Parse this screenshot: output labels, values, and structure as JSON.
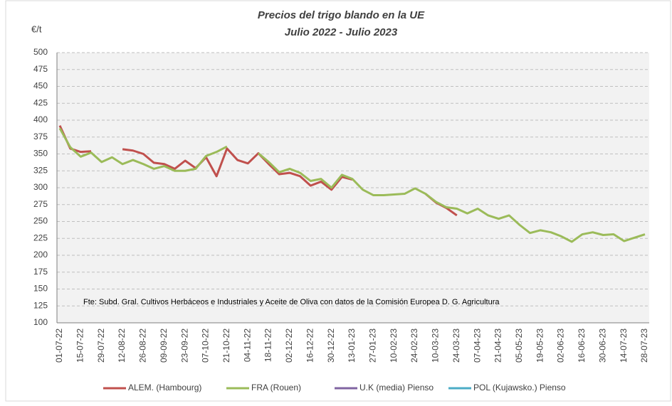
{
  "chart_data": {
    "type": "line",
    "title": "Precios del trigo blando en la UE",
    "subtitle": "Julio 2022 - Julio 2023",
    "y_label": "€/t",
    "note": "Fte: Subd. Gral. Cultivos Herbáceos e Industriales y Aceite de Oliva con  datos de la Comisión Europea D.  G. Agricultura",
    "categories": [
      "01-07-22",
      null,
      "15-07-22",
      null,
      "29-07-22",
      null,
      "12-08-22",
      null,
      "26-08-22",
      null,
      "09-09-22",
      null,
      "23-09-22",
      null,
      "07-10-22",
      null,
      "21-10-22",
      null,
      "04-11-22",
      null,
      "18-11-22",
      null,
      "02-12-22",
      null,
      "16-12-22",
      null,
      "30-12-22",
      null,
      "13-01-23",
      null,
      "27-01-23",
      null,
      "10-02-23",
      null,
      "24-02-23",
      null,
      "10-03-23",
      null,
      "24-03-23",
      null,
      "07-04-23",
      null,
      "21-04-23",
      null,
      "05-05-23",
      null,
      "19-05-23",
      null,
      "02-06-23",
      null,
      "16-06-23",
      null,
      "30-06-23",
      null,
      "14-07-23",
      null,
      "28-07-23"
    ],
    "series": [
      {
        "name": "ALEM. (Hambourg)",
        "color": "#c0504d",
        "values": [
          392,
          358,
          353,
          354,
          null,
          null,
          357,
          355,
          350,
          337,
          335,
          328,
          340,
          329,
          345,
          317,
          358,
          341,
          336,
          351,
          335,
          320,
          322,
          317,
          303,
          309,
          297,
          316,
          312,
          null,
          null,
          null,
          null,
          null,
          null,
          291,
          278,
          270,
          259,
          null,
          null,
          null,
          null,
          null,
          null,
          null,
          null,
          null,
          null,
          null,
          null,
          null,
          null,
          null,
          null,
          null,
          null
        ]
      },
      {
        "name": "FRA (Rouen)",
        "color": "#9bbb59",
        "values": [
          388,
          360,
          346,
          352,
          338,
          345,
          335,
          341,
          335,
          328,
          332,
          325,
          325,
          328,
          347,
          353,
          361,
          null,
          null,
          351,
          338,
          323,
          328,
          322,
          310,
          313,
          300,
          319,
          313,
          297,
          289,
          289,
          290,
          291,
          299,
          291,
          279,
          271,
          269,
          262,
          269,
          259,
          254,
          259,
          245,
          233,
          237,
          234,
          228,
          220,
          231,
          234,
          230,
          231,
          221,
          226,
          231
        ]
      },
      {
        "name": "U.K (media) Pienso",
        "color": "#8064a2",
        "values": [
          null,
          null,
          null,
          null,
          null,
          null,
          null,
          null,
          null,
          null,
          null,
          null,
          null,
          null,
          null,
          null,
          null,
          null,
          null,
          null,
          null,
          null,
          null,
          null,
          null,
          null,
          null,
          null,
          null,
          null,
          null,
          null,
          null,
          null,
          null,
          null,
          null,
          null,
          null,
          null,
          null,
          null,
          null,
          null,
          null,
          null,
          null,
          null,
          null,
          null,
          null,
          null,
          null,
          null,
          null,
          null,
          null
        ]
      },
      {
        "name": "POL (Kujawsko.) Pienso",
        "color": "#4bacc6",
        "values": [
          null,
          null,
          null,
          null,
          null,
          null,
          null,
          null,
          null,
          null,
          null,
          null,
          null,
          null,
          null,
          null,
          null,
          null,
          null,
          null,
          null,
          null,
          null,
          null,
          null,
          null,
          null,
          null,
          null,
          null,
          null,
          null,
          null,
          null,
          null,
          null,
          null,
          null,
          null,
          null,
          null,
          null,
          null,
          null,
          null,
          null,
          null,
          null,
          null,
          null,
          null,
          null,
          null,
          null,
          null,
          null,
          null
        ]
      }
    ],
    "ylim": [
      100,
      500
    ],
    "yticks": [
      100,
      125,
      150,
      175,
      200,
      225,
      250,
      275,
      300,
      325,
      350,
      375,
      400,
      425,
      450,
      475,
      500
    ],
    "grid": true,
    "legend": "bottom"
  }
}
